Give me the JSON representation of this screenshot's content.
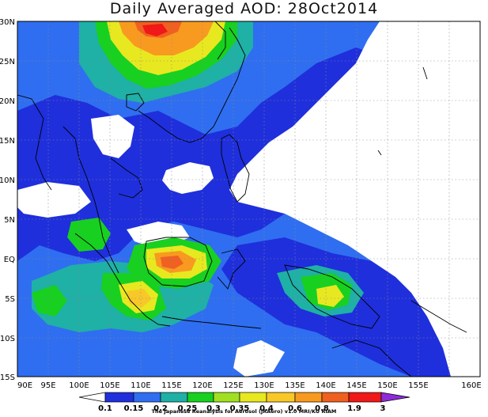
{
  "title": "Daily Averaged AOD: 28Oct2014",
  "lat_labels": [
    "30N",
    "25N",
    "20N",
    "15N",
    "10N",
    "5N",
    "EQ",
    "5S",
    "10S",
    "15S"
  ],
  "lon_labels": [
    "90E",
    "95E",
    "100E",
    "105E",
    "110E",
    "115E",
    "120E",
    "125E",
    "130E",
    "135E",
    "140E",
    "145E",
    "150E",
    "155E",
    "160E"
  ],
  "colorbar": {
    "labels": [
      "0.1",
      "0.15",
      "0.2",
      "0.25",
      "0.3",
      "0.35",
      "0.4",
      "0.6",
      "0.8",
      "1.9",
      "3"
    ],
    "colors": [
      "#ffffff",
      "#1f2fdc",
      "#2f6ef0",
      "#1fb0a6",
      "#18d020",
      "#a0e020",
      "#e8e820",
      "#f8c828",
      "#f89a20",
      "#f06020",
      "#f01818",
      "#8e2ad8"
    ]
  },
  "credit": "The Japanese Reanalysis for Aerosol (JRAero) v1.0 MRI/KU RIAM",
  "palette": {
    "c1": "#1f2fdc",
    "c2": "#2f6ef0",
    "c3": "#1fb0a6",
    "c4": "#18d020",
    "c5": "#a0e020",
    "c6": "#e8e820",
    "c7": "#f8c828",
    "c8": "#f89a20",
    "c9": "#f06020",
    "c10": "#f01818"
  }
}
